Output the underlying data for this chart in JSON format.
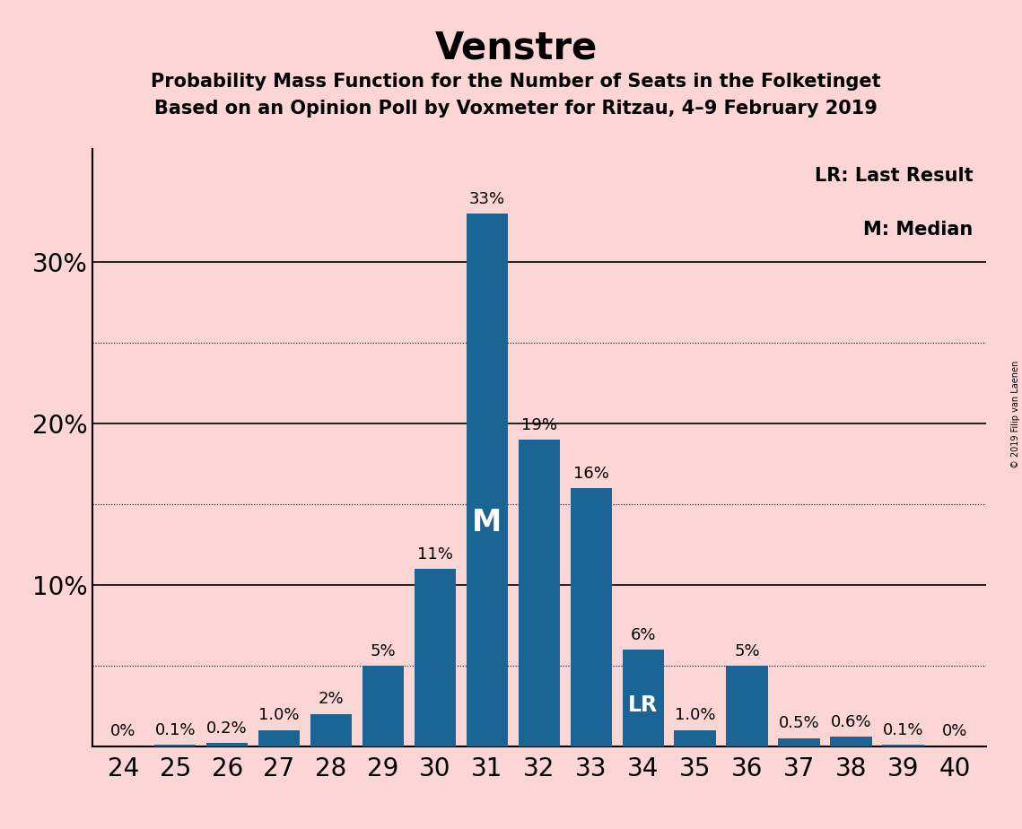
{
  "title": "Venstre",
  "subtitle1": "Probability Mass Function for the Number of Seats in the Folketinget",
  "subtitle2": "Based on an Opinion Poll by Voxmeter for Ritzau, 4–9 February 2019",
  "copyright": "© 2019 Filip van Laenen",
  "categories": [
    24,
    25,
    26,
    27,
    28,
    29,
    30,
    31,
    32,
    33,
    34,
    35,
    36,
    37,
    38,
    39,
    40
  ],
  "values": [
    0.0,
    0.1,
    0.2,
    1.0,
    2.0,
    5.0,
    11.0,
    33.0,
    19.0,
    16.0,
    6.0,
    1.0,
    5.0,
    0.5,
    0.6,
    0.1,
    0.0
  ],
  "labels": [
    "0%",
    "0.1%",
    "0.2%",
    "1.0%",
    "2%",
    "5%",
    "11%",
    "33%",
    "19%",
    "16%",
    "6%",
    "1.0%",
    "5%",
    "0.5%",
    "0.6%",
    "0.1%",
    "0%"
  ],
  "bar_color": "#1a6496",
  "background_color": "#fcd5d5",
  "median_seat": 31,
  "lr_seat": 34,
  "legend_lr": "LR: Last Result",
  "legend_m": "M: Median",
  "ylim": [
    0,
    37
  ],
  "solid_yticks": [
    10,
    20,
    30
  ],
  "dotted_yticks": [
    5,
    15,
    25
  ],
  "title_fontsize": 30,
  "subtitle_fontsize": 15,
  "axis_fontsize": 20,
  "label_fontsize": 13,
  "legend_fontsize": 15
}
